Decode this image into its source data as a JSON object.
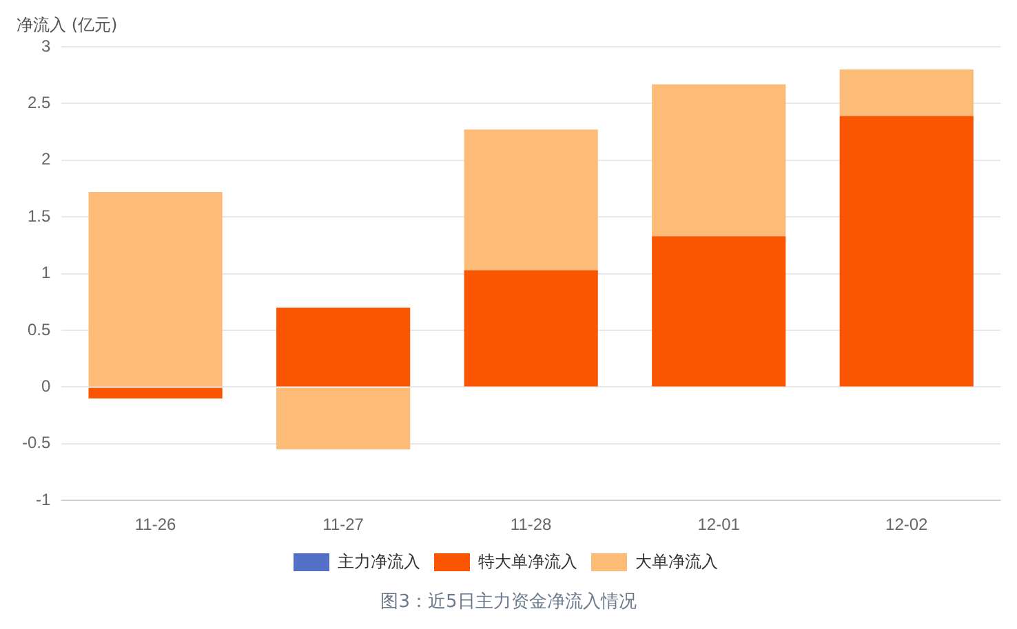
{
  "chart_data": {
    "type": "bar",
    "ylabel": "净流入 (亿元)",
    "categories": [
      "11-26",
      "11-27",
      "11-28",
      "12-01",
      "12-02"
    ],
    "series": [
      {
        "name": "主力净流入",
        "color": "#5470c6",
        "values": [
          null,
          null,
          null,
          null,
          null
        ]
      },
      {
        "name": "特大单净流入",
        "color": "#fa5500",
        "values": [
          -0.1,
          0.7,
          1.03,
          1.33,
          2.39
        ]
      },
      {
        "name": "大单净流入",
        "color": "#fcbb77",
        "values": [
          1.72,
          -0.55,
          1.24,
          1.34,
          0.41
        ]
      }
    ],
    "stacked": true,
    "ylim": [
      -1,
      3
    ],
    "yticks": [
      -1,
      -0.5,
      0,
      0.5,
      1,
      1.5,
      2,
      2.5,
      3
    ],
    "grid": "y",
    "legend": "bottom",
    "annotations": [
      "图3：近5日主力资金净流入情况"
    ]
  }
}
